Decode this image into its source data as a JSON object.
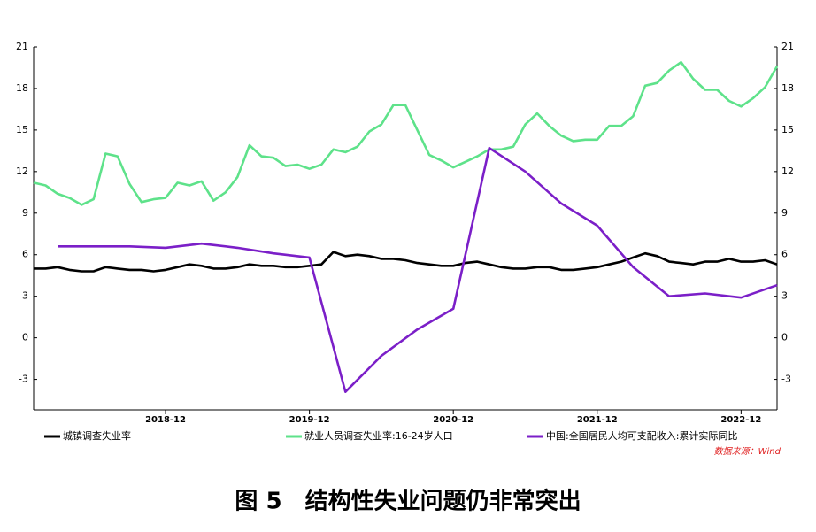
{
  "chart_data": {
    "type": "line",
    "title": "图 5　结构性失业问题仍非常突出",
    "source": "数据来源：Wind",
    "x": [
      "2018-01",
      "2018-02",
      "2018-03",
      "2018-04",
      "2018-05",
      "2018-06",
      "2018-07",
      "2018-08",
      "2018-09",
      "2018-10",
      "2018-11",
      "2018-12",
      "2019-01",
      "2019-02",
      "2019-03",
      "2019-04",
      "2019-05",
      "2019-06",
      "2019-07",
      "2019-08",
      "2019-09",
      "2019-10",
      "2019-11",
      "2019-12",
      "2020-01",
      "2020-02",
      "2020-03",
      "2020-04",
      "2020-05",
      "2020-06",
      "2020-07",
      "2020-08",
      "2020-09",
      "2020-10",
      "2020-11",
      "2020-12",
      "2021-01",
      "2021-02",
      "2021-03",
      "2021-04",
      "2021-05",
      "2021-06",
      "2021-07",
      "2021-08",
      "2021-09",
      "2021-10",
      "2021-11",
      "2021-12",
      "2022-01",
      "2022-02",
      "2022-03",
      "2022-04",
      "2022-05",
      "2022-06",
      "2022-07",
      "2022-08",
      "2022-09",
      "2022-10",
      "2022-11",
      "2022-12",
      "2023-01",
      "2023-02",
      "2023-03"
    ],
    "xticks": [
      "2018-12",
      "2019-12",
      "2020-12",
      "2021-12",
      "2022-12"
    ],
    "ylim": [
      -5.2,
      21
    ],
    "yticks": [
      -3,
      0,
      3,
      6,
      9,
      12,
      15,
      18,
      21
    ],
    "y2lim": [
      -5.2,
      21
    ],
    "y2ticks": [
      -3,
      0,
      3,
      6,
      9,
      12,
      15,
      18,
      21
    ],
    "grid": false,
    "legend": "bottom",
    "series": [
      {
        "name": "城镇调查失业率",
        "color": "#000000",
        "values": [
          5.0,
          5.0,
          5.1,
          4.9,
          4.8,
          4.8,
          5.1,
          5.0,
          4.9,
          4.9,
          4.8,
          4.9,
          5.1,
          5.3,
          5.2,
          5.0,
          5.0,
          5.1,
          5.3,
          5.2,
          5.2,
          5.1,
          5.1,
          5.2,
          5.3,
          6.2,
          5.9,
          6.0,
          5.9,
          5.7,
          5.7,
          5.6,
          5.4,
          5.3,
          5.2,
          5.2,
          5.4,
          5.5,
          5.3,
          5.1,
          5.0,
          5.0,
          5.1,
          5.1,
          4.9,
          4.9,
          5.0,
          5.1,
          5.3,
          5.5,
          5.8,
          6.1,
          5.9,
          5.5,
          5.4,
          5.3,
          5.5,
          5.5,
          5.7,
          5.5,
          5.5,
          5.6,
          5.3
        ]
      },
      {
        "name": "就业人员调查失业率:16-24岁人口",
        "color": "#5ee28a",
        "values": [
          11.2,
          11.0,
          10.4,
          10.1,
          9.6,
          10.0,
          13.3,
          13.1,
          11.1,
          9.8,
          10.0,
          10.1,
          11.2,
          11.0,
          11.3,
          9.9,
          10.5,
          11.6,
          13.9,
          13.1,
          13.0,
          12.4,
          12.5,
          12.2,
          12.5,
          13.6,
          13.4,
          13.8,
          14.9,
          15.4,
          16.8,
          16.8,
          15.0,
          13.2,
          12.8,
          12.3,
          12.7,
          13.1,
          13.6,
          13.6,
          13.8,
          15.4,
          16.2,
          15.3,
          14.6,
          14.2,
          14.3,
          14.3,
          15.3,
          15.3,
          16.0,
          18.2,
          18.4,
          19.3,
          19.9,
          18.7,
          17.9,
          17.9,
          17.1,
          16.7,
          17.3,
          18.1,
          19.6
        ]
      },
      {
        "name": "中国:全国居民人均可支配收入:累计实际同比",
        "color": "#7b1fc8",
        "x": [
          "2018-03",
          "2018-06",
          "2018-09",
          "2018-12",
          "2019-03",
          "2019-06",
          "2019-09",
          "2019-12",
          "2020-03",
          "2020-06",
          "2020-09",
          "2020-12",
          "2021-03",
          "2021-06",
          "2021-09",
          "2021-12",
          "2022-03",
          "2022-06",
          "2022-09",
          "2022-12",
          "2023-03"
        ],
        "values": [
          6.6,
          6.6,
          6.6,
          6.5,
          6.8,
          6.5,
          6.1,
          5.8,
          -3.9,
          -1.3,
          0.6,
          2.1,
          13.7,
          12.0,
          9.7,
          8.1,
          5.1,
          3.0,
          3.2,
          2.9,
          3.8
        ]
      }
    ]
  }
}
